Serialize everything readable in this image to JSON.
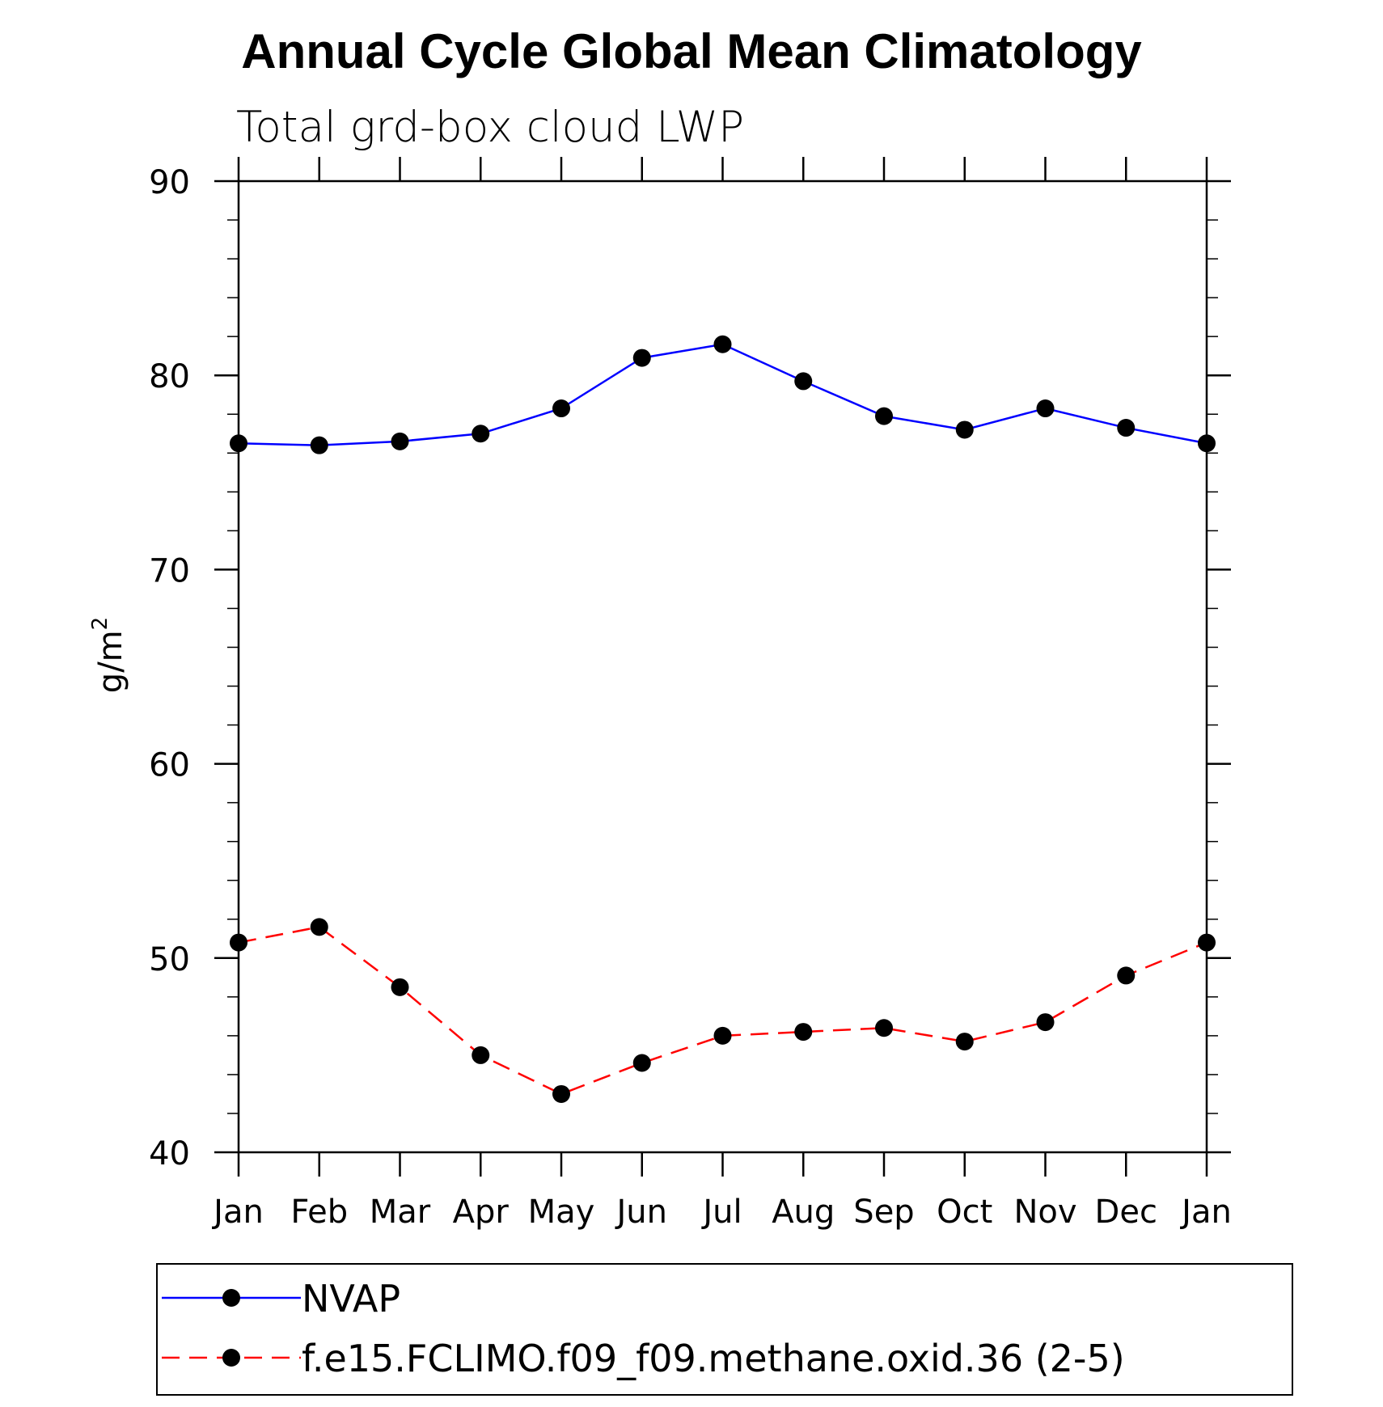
{
  "chart_data": {
    "type": "line",
    "title": "Annual Cycle Global Mean Climatology",
    "subtitle": "Total grd-box cloud LWP",
    "xlabel": "",
    "ylabel": "g/m",
    "ylabel_superscript": "2",
    "categories": [
      "Jan",
      "Feb",
      "Mar",
      "Apr",
      "May",
      "Jun",
      "Jul",
      "Aug",
      "Sep",
      "Oct",
      "Nov",
      "Dec",
      "Jan"
    ],
    "ylim": [
      40,
      90
    ],
    "yticks": [
      40,
      50,
      60,
      70,
      80,
      90
    ],
    "y_minor_step": 2,
    "series": [
      {
        "name": "NVAP",
        "color": "#0000ff",
        "line_style": "solid",
        "marker": "filled-circle",
        "values": [
          76.5,
          76.4,
          76.6,
          77.0,
          78.3,
          80.9,
          81.6,
          79.7,
          77.9,
          77.2,
          78.3,
          77.3,
          76.5
        ]
      },
      {
        "name": "f.e15.FCLIMO.f09_f09.methane.oxid.36 (2-5)",
        "color": "#ff0000",
        "line_style": "dashed",
        "marker": "filled-circle",
        "values": [
          50.8,
          51.6,
          48.5,
          45.0,
          43.0,
          44.6,
          46.0,
          46.2,
          46.4,
          45.7,
          46.7,
          49.1,
          50.8
        ]
      }
    ],
    "legend_position": "bottom"
  }
}
